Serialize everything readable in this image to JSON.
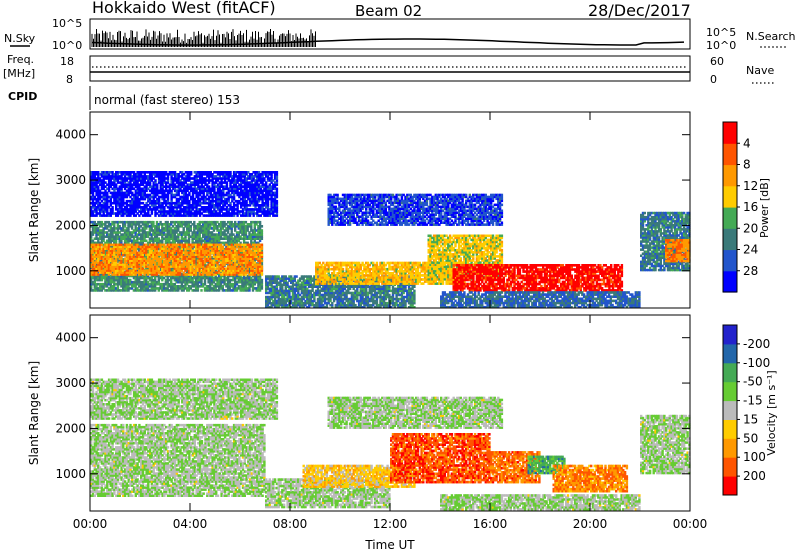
{
  "header": {
    "station": "Hokkaido West (fitACF)",
    "beam": "Beam 02",
    "date": "28/Dec/2017"
  },
  "noise_panel": {
    "left_label": "N.Sky",
    "right_label": "N.Search",
    "left_ticks": [
      "10^5",
      "10^0"
    ],
    "right_ticks": [
      "10^5",
      "10^0"
    ]
  },
  "freq_panel": {
    "left_label_1": "Freq.",
    "left_label_2": "[MHz]",
    "right_label": "Nave",
    "left_ticks": [
      "18",
      "8"
    ],
    "right_ticks": [
      "60",
      "0"
    ]
  },
  "cpid": {
    "label": "CPID",
    "text": "normal (fast stereo) 153"
  },
  "chart_data": [
    {
      "type": "heatmap",
      "name": "power",
      "ylabel": "Slant Range [km]",
      "ylim": [
        180,
        4500
      ],
      "yticks": [
        "1000",
        "2000",
        "3000",
        "4000"
      ],
      "ytick_values": [
        1000,
        2000,
        3000,
        4000
      ],
      "xlim": [
        0,
        24
      ],
      "colorbar_label": "Power [dB]",
      "colorbar_ticks": [
        "4",
        "8",
        "12",
        "16",
        "20",
        "24",
        "28"
      ],
      "colorbar_colors": [
        "#0000ff",
        "#2255cc",
        "#3a7a7a",
        "#44aa55",
        "#ffcc00",
        "#ff9900",
        "#ff5500",
        "#ff0000"
      ],
      "bands": [
        {
          "t0": 0.0,
          "t1": 6.9,
          "r0": 550,
          "r1": 2100,
          "level": 0.35
        },
        {
          "t0": 0.0,
          "t1": 6.9,
          "r0": 900,
          "r1": 1600,
          "level": 0.7
        },
        {
          "t0": 0.0,
          "t1": 7.5,
          "r0": 2200,
          "r1": 3200,
          "level": 0.05
        },
        {
          "t0": 9.5,
          "t1": 16.5,
          "r0": 2000,
          "r1": 2700,
          "level": 0.15
        },
        {
          "t0": 7.0,
          "t1": 13.0,
          "r0": 180,
          "r1": 900,
          "level": 0.3
        },
        {
          "t0": 9.0,
          "t1": 15.0,
          "r0": 700,
          "r1": 1200,
          "level": 0.6
        },
        {
          "t0": 13.5,
          "t1": 16.5,
          "r0": 800,
          "r1": 1800,
          "level": 0.55
        },
        {
          "t0": 14.5,
          "t1": 21.3,
          "r0": 550,
          "r1": 1150,
          "level": 0.95
        },
        {
          "t0": 14.0,
          "t1": 22.0,
          "r0": 180,
          "r1": 550,
          "level": 0.25
        },
        {
          "t0": 22.0,
          "t1": 24.0,
          "r0": 1000,
          "r1": 2300,
          "level": 0.3
        },
        {
          "t0": 23.0,
          "t1": 24.0,
          "r0": 1200,
          "r1": 1700,
          "level": 0.75
        }
      ]
    },
    {
      "type": "heatmap",
      "name": "velocity",
      "ylabel": "Slant Range [km]",
      "xlabel": "Time UT",
      "ylim": [
        180,
        4500
      ],
      "yticks": [
        "1000",
        "2000",
        "3000",
        "4000"
      ],
      "ytick_values": [
        1000,
        2000,
        3000,
        4000
      ],
      "xlim": [
        0,
        24
      ],
      "xticks": [
        "00:00",
        "04:00",
        "08:00",
        "12:00",
        "16:00",
        "20:00",
        "00:00"
      ],
      "xtick_values": [
        0,
        4,
        8,
        12,
        16,
        20,
        24
      ],
      "colorbar_label": "Velocity [m s⁻¹]",
      "colorbar_ticks": [
        "200",
        "100",
        "50",
        "15",
        "-15",
        "-50",
        "-100",
        "-200"
      ],
      "colorbar_colors": [
        "#2222cc",
        "#2266aa",
        "#44aa55",
        "#66cc33",
        "#bbbbbb",
        "#ffcc00",
        "#ff9900",
        "#ff5500",
        "#ff0000"
      ],
      "bands": [
        {
          "t0": 0.0,
          "t1": 7.0,
          "r0": 500,
          "r1": 2100,
          "level": 0.45
        },
        {
          "t0": 0.0,
          "t1": 7.5,
          "r0": 2200,
          "r1": 3100,
          "level": 0.45
        },
        {
          "t0": 9.5,
          "t1": 16.5,
          "r0": 2000,
          "r1": 2700,
          "level": 0.45
        },
        {
          "t0": 7.0,
          "t1": 12.0,
          "r0": 250,
          "r1": 900,
          "level": 0.45
        },
        {
          "t0": 8.5,
          "t1": 13.0,
          "r0": 700,
          "r1": 1200,
          "level": 0.62
        },
        {
          "t0": 12.0,
          "t1": 16.0,
          "r0": 800,
          "r1": 1900,
          "level": 0.85
        },
        {
          "t0": 16.0,
          "t1": 18.0,
          "r0": 800,
          "r1": 1500,
          "level": 0.8
        },
        {
          "t0": 17.5,
          "t1": 19.0,
          "r0": 1000,
          "r1": 1400,
          "level": 0.3
        },
        {
          "t0": 18.5,
          "t1": 21.5,
          "r0": 600,
          "r1": 1200,
          "level": 0.75
        },
        {
          "t0": 14.0,
          "t1": 22.0,
          "r0": 200,
          "r1": 550,
          "level": 0.45
        },
        {
          "t0": 22.0,
          "t1": 24.0,
          "r0": 1000,
          "r1": 2300,
          "level": 0.45
        }
      ]
    }
  ]
}
